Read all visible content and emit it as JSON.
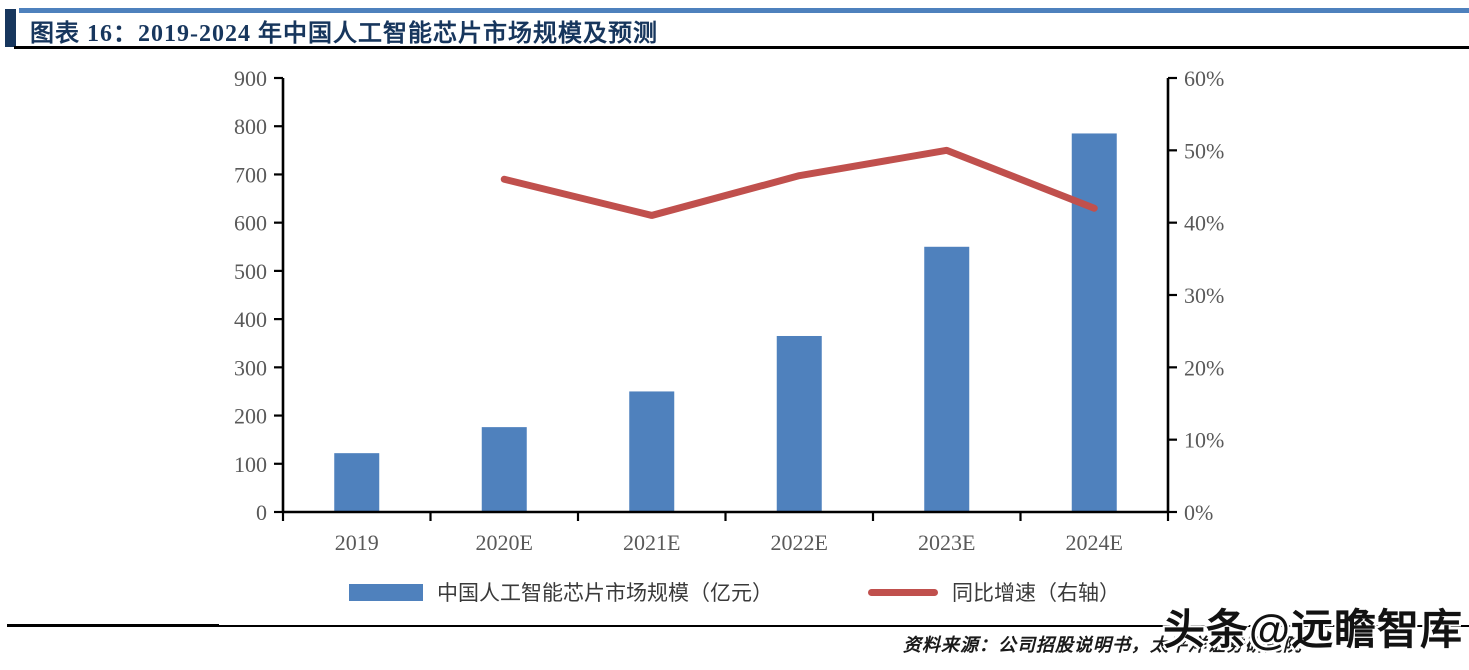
{
  "page": {
    "title": "图表 16：2019-2024 年中国人工智能芯片市场规模及预测",
    "source_note": "资料来源：公司招股说明书，太平洋证券研究院",
    "watermark": "头条@远瞻智库"
  },
  "colors": {
    "bar": "#4F81BD",
    "line": "#C0504D",
    "title": "#17365D",
    "top_rule": "#4E81BD",
    "axis": "#000000",
    "tick_label": "#595959"
  },
  "chart_data": {
    "type": "bar",
    "subtype": "combo-bar-line-dual-axis",
    "title": "图表 16：2019-2024 年中国人工智能芯片市场规模及预测",
    "categories": [
      "2019",
      "2020E",
      "2021E",
      "2022E",
      "2023E",
      "2024E"
    ],
    "series": [
      {
        "name": "中国人工智能芯片市场规模（亿元）",
        "type": "bar",
        "axis": "left",
        "color": "#4F81BD",
        "values": [
          122,
          176,
          250,
          365,
          550,
          785
        ]
      },
      {
        "name": "同比增速（右轴）",
        "type": "line",
        "axis": "right",
        "color": "#C0504D",
        "values": [
          null,
          46,
          41,
          46.5,
          50,
          42
        ]
      }
    ],
    "left_axis": {
      "min": 0,
      "max": 900,
      "step": 100,
      "tick_labels": [
        "0",
        "100",
        "200",
        "300",
        "400",
        "500",
        "600",
        "700",
        "800",
        "900"
      ]
    },
    "right_axis": {
      "min": 0,
      "max": 60,
      "step": 10,
      "unit": "%",
      "tick_labels": [
        "0%",
        "10%",
        "20%",
        "30%",
        "40%",
        "50%",
        "60%"
      ]
    },
    "legend_position": "bottom",
    "grid": false
  }
}
